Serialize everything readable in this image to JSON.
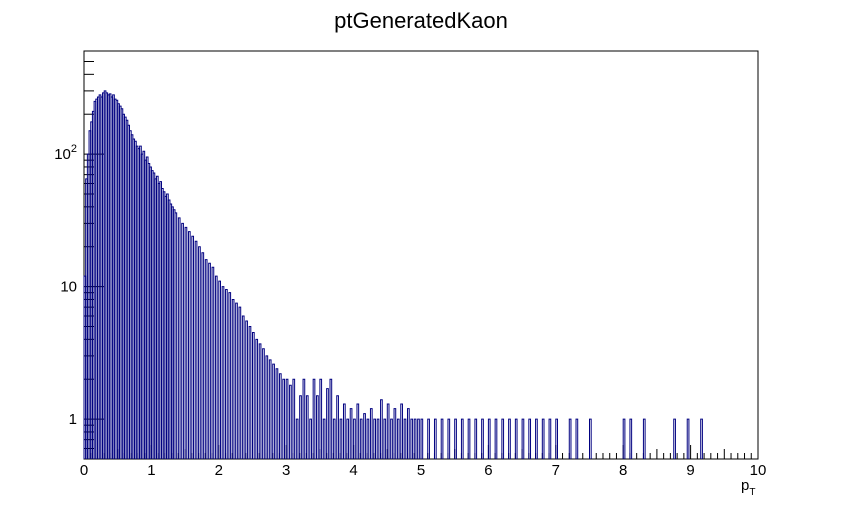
{
  "chart_data": {
    "type": "bar",
    "title": "ptGeneratedKaon",
    "xlabel": "p",
    "xlabel_sub": "T",
    "ylabel": "",
    "xlim": [
      0,
      10
    ],
    "ylim": [
      0.5,
      600
    ],
    "yscale": "log",
    "grid": false,
    "legend": "none",
    "line_color": "#000080",
    "x_tick_labels": [
      "0",
      "1",
      "2",
      "3",
      "4",
      "5",
      "6",
      "7",
      "8",
      "9",
      "10"
    ],
    "y_tick_labels": [
      {
        "value": 1,
        "label": "1"
      },
      {
        "value": 10,
        "label": "10"
      },
      {
        "value": 100,
        "label": "10",
        "sup": "2"
      }
    ],
    "bin_width": 0.025,
    "bins": [
      [
        0.0,
        12
      ],
      [
        0.025,
        65
      ],
      [
        0.05,
        100
      ],
      [
        0.075,
        150
      ],
      [
        0.1,
        175
      ],
      [
        0.125,
        210
      ],
      [
        0.15,
        250
      ],
      [
        0.175,
        260
      ],
      [
        0.2,
        270
      ],
      [
        0.225,
        280
      ],
      [
        0.25,
        270
      ],
      [
        0.275,
        290
      ],
      [
        0.3,
        300
      ],
      [
        0.325,
        290
      ],
      [
        0.35,
        280
      ],
      [
        0.375,
        285
      ],
      [
        0.4,
        270
      ],
      [
        0.425,
        280
      ],
      [
        0.45,
        260
      ],
      [
        0.475,
        255
      ],
      [
        0.5,
        240
      ],
      [
        0.525,
        230
      ],
      [
        0.55,
        220
      ],
      [
        0.575,
        200
      ],
      [
        0.6,
        190
      ],
      [
        0.625,
        180
      ],
      [
        0.65,
        165
      ],
      [
        0.675,
        150
      ],
      [
        0.7,
        140
      ],
      [
        0.725,
        130
      ],
      [
        0.75,
        125
      ],
      [
        0.775,
        115
      ],
      [
        0.8,
        110
      ],
      [
        0.825,
        115
      ],
      [
        0.85,
        100
      ],
      [
        0.875,
        105
      ],
      [
        0.9,
        90
      ],
      [
        0.925,
        95
      ],
      [
        0.95,
        85
      ],
      [
        0.975,
        80
      ],
      [
        1.0,
        75
      ],
      [
        1.025,
        72
      ],
      [
        1.05,
        65
      ],
      [
        1.075,
        68
      ],
      [
        1.1,
        60
      ],
      [
        1.125,
        62
      ],
      [
        1.15,
        55
      ],
      [
        1.175,
        52
      ],
      [
        1.2,
        48
      ],
      [
        1.225,
        50
      ],
      [
        1.25,
        45
      ],
      [
        1.275,
        42
      ],
      [
        1.3,
        40
      ],
      [
        1.325,
        38
      ],
      [
        1.35,
        36
      ],
      [
        1.4,
        33
      ],
      [
        1.45,
        30
      ],
      [
        1.5,
        28
      ],
      [
        1.55,
        26
      ],
      [
        1.6,
        24
      ],
      [
        1.65,
        22
      ],
      [
        1.7,
        20
      ],
      [
        1.75,
        18
      ],
      [
        1.8,
        16
      ],
      [
        1.85,
        15
      ],
      [
        1.9,
        14
      ],
      [
        1.95,
        12
      ],
      [
        2.0,
        11
      ],
      [
        2.05,
        10
      ],
      [
        2.1,
        9.5
      ],
      [
        2.15,
        9
      ],
      [
        2.2,
        8
      ],
      [
        2.25,
        7.5
      ],
      [
        2.3,
        7
      ],
      [
        2.35,
        6
      ],
      [
        2.4,
        5.5
      ],
      [
        2.45,
        5
      ],
      [
        2.5,
        4.5
      ],
      [
        2.55,
        4
      ],
      [
        2.6,
        3.7
      ],
      [
        2.65,
        3.4
      ],
      [
        2.7,
        3
      ],
      [
        2.75,
        2.8
      ],
      [
        2.8,
        2.6
      ],
      [
        2.85,
        2.4
      ],
      [
        2.9,
        2.2
      ],
      [
        2.95,
        2
      ],
      [
        3.0,
        2
      ],
      [
        3.05,
        1.8
      ],
      [
        3.1,
        2
      ],
      [
        3.15,
        1
      ],
      [
        3.2,
        1.5
      ],
      [
        3.25,
        2
      ],
      [
        3.3,
        1.5
      ],
      [
        3.35,
        1
      ],
      [
        3.4,
        2
      ],
      [
        3.45,
        1.5
      ],
      [
        3.5,
        2
      ],
      [
        3.55,
        1
      ],
      [
        3.6,
        1.7
      ],
      [
        3.65,
        2
      ],
      [
        3.7,
        1
      ],
      [
        3.75,
        1.5
      ],
      [
        3.8,
        1
      ],
      [
        3.85,
        1.3
      ],
      [
        3.9,
        1
      ],
      [
        3.95,
        1.2
      ],
      [
        4.0,
        1
      ],
      [
        4.05,
        1.3
      ],
      [
        4.1,
        1
      ],
      [
        4.15,
        1.1
      ],
      [
        4.2,
        1
      ],
      [
        4.25,
        1.2
      ],
      [
        4.3,
        1
      ],
      [
        4.35,
        1
      ],
      [
        4.4,
        1.4
      ],
      [
        4.45,
        1
      ],
      [
        4.5,
        1.3
      ],
      [
        4.55,
        1
      ],
      [
        4.6,
        1.2
      ],
      [
        4.65,
        1
      ],
      [
        4.7,
        1.3
      ],
      [
        4.75,
        1
      ],
      [
        4.8,
        1.2
      ],
      [
        4.85,
        1
      ],
      [
        4.9,
        1
      ],
      [
        4.95,
        1
      ],
      [
        5.0,
        1
      ],
      [
        5.1,
        1
      ],
      [
        5.2,
        1
      ],
      [
        5.3,
        1
      ],
      [
        5.4,
        1
      ],
      [
        5.5,
        1
      ],
      [
        5.6,
        1
      ],
      [
        5.7,
        1
      ],
      [
        5.8,
        1
      ],
      [
        5.9,
        1
      ],
      [
        6.0,
        1
      ],
      [
        6.1,
        1
      ],
      [
        6.2,
        1
      ],
      [
        6.3,
        1
      ],
      [
        6.4,
        1
      ],
      [
        6.5,
        1
      ],
      [
        6.6,
        1
      ],
      [
        6.7,
        1
      ],
      [
        6.8,
        1
      ],
      [
        6.9,
        1
      ],
      [
        7.0,
        1
      ],
      [
        7.2,
        1
      ],
      [
        7.3,
        1
      ],
      [
        7.5,
        1
      ],
      [
        8.0,
        1
      ],
      [
        8.1,
        1
      ],
      [
        8.3,
        1
      ],
      [
        8.75,
        1
      ],
      [
        8.95,
        1
      ],
      [
        9.15,
        1
      ]
    ]
  }
}
